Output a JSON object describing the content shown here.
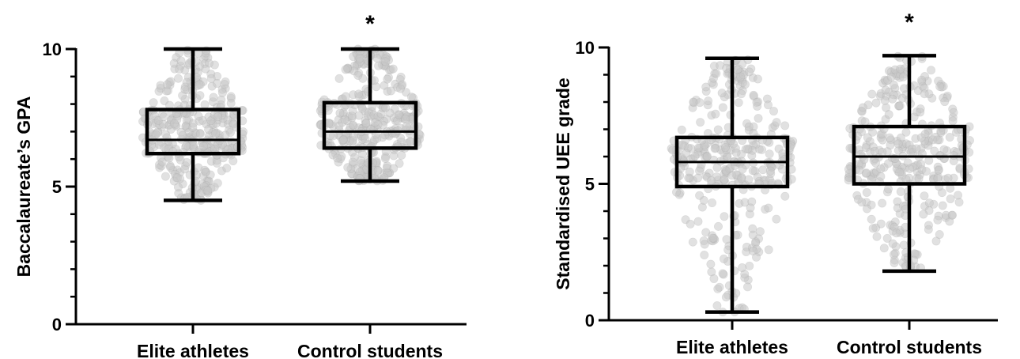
{
  "chart_data": [
    {
      "type": "box",
      "ylabel": "Baccalaureate’s GPA",
      "ylim": [
        0,
        10
      ],
      "yticks": [
        0,
        5,
        10
      ],
      "yminor_step": 1,
      "categories": [
        "Elite athletes",
        "Control students"
      ],
      "boxes": [
        {
          "category": "Elite athletes",
          "min": 4.5,
          "q1": 6.2,
          "median": 6.7,
          "q3": 7.8,
          "max": 10.0,
          "significance": ""
        },
        {
          "category": "Control students",
          "min": 5.2,
          "q1": 6.4,
          "median": 7.0,
          "q3": 8.05,
          "max": 10.0,
          "significance": "*"
        }
      ],
      "points_shown": true
    },
    {
      "type": "box",
      "ylabel": "Standardised UEE grade",
      "ylim": [
        0,
        10
      ],
      "yticks": [
        0,
        5,
        10
      ],
      "yminor_step": 1,
      "categories": [
        "Elite athletes",
        "Control students"
      ],
      "boxes": [
        {
          "category": "Elite athletes",
          "min": 0.3,
          "q1": 4.9,
          "median": 5.8,
          "q3": 6.7,
          "max": 9.6,
          "significance": ""
        },
        {
          "category": "Control students",
          "min": 1.8,
          "q1": 5.0,
          "median": 6.0,
          "q3": 7.1,
          "max": 9.7,
          "significance": "*"
        }
      ],
      "points_shown": true
    }
  ]
}
